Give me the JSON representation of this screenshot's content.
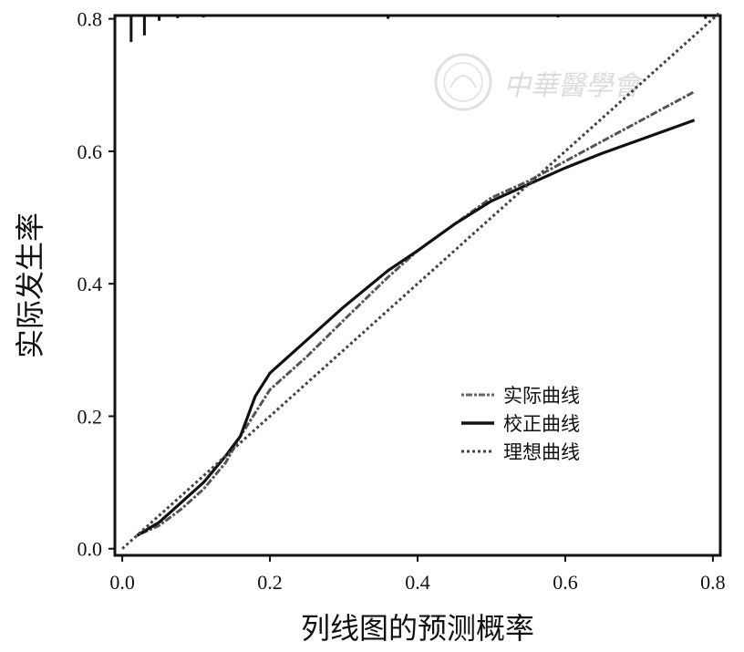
{
  "chart_data": {
    "type": "line",
    "xlabel": "列线图的预测概率",
    "ylabel": "实际发生率",
    "xlim": [
      -0.01,
      0.81
    ],
    "ylim": [
      -0.01,
      0.805
    ],
    "x_ticks": [
      "0.0",
      "0.2",
      "0.4",
      "0.6",
      "0.8"
    ],
    "y_ticks": [
      "0.0",
      "0.2",
      "0.4",
      "0.6",
      "0.8"
    ],
    "legend_position": "lower-right",
    "grid": false,
    "series": [
      {
        "name": "实际曲线",
        "style": "dotdash",
        "color": "#555555",
        "x": [
          0.02,
          0.05,
          0.08,
          0.11,
          0.14,
          0.16,
          0.18,
          0.2,
          0.25,
          0.3,
          0.36,
          0.4,
          0.45,
          0.5,
          0.55,
          0.6,
          0.65,
          0.7,
          0.775
        ],
        "y": [
          0.02,
          0.035,
          0.06,
          0.09,
          0.13,
          0.17,
          0.205,
          0.24,
          0.29,
          0.345,
          0.41,
          0.45,
          0.49,
          0.53,
          0.555,
          0.585,
          0.615,
          0.645,
          0.69
        ]
      },
      {
        "name": "校正曲线",
        "style": "solid",
        "color": "#111111",
        "x": [
          0.02,
          0.05,
          0.08,
          0.11,
          0.14,
          0.16,
          0.18,
          0.2,
          0.25,
          0.3,
          0.36,
          0.4,
          0.45,
          0.5,
          0.55,
          0.6,
          0.65,
          0.7,
          0.775
        ],
        "y": [
          0.02,
          0.04,
          0.07,
          0.1,
          0.14,
          0.17,
          0.23,
          0.265,
          0.315,
          0.365,
          0.42,
          0.45,
          0.49,
          0.525,
          0.55,
          0.575,
          0.597,
          0.617,
          0.647
        ]
      },
      {
        "name": "理想曲线",
        "style": "dotted",
        "color": "#444444",
        "x": [
          0.0,
          0.81
        ],
        "y": [
          0.0,
          0.81
        ]
      }
    ],
    "rug_top": [
      {
        "x": 0.012,
        "len": 0.04
      },
      {
        "x": 0.03,
        "len": 0.03
      },
      {
        "x": 0.05,
        "len": 0.008
      },
      {
        "x": 0.075,
        "len": 0.004
      },
      {
        "x": 0.11,
        "len": 0.003
      },
      {
        "x": 0.36,
        "len": 0.005
      },
      {
        "x": 0.59,
        "len": 0.003
      },
      {
        "x": 0.79,
        "len": 0.005
      }
    ]
  },
  "watermark": {
    "text": "中華醫學會",
    "seal": "seal-icon"
  }
}
